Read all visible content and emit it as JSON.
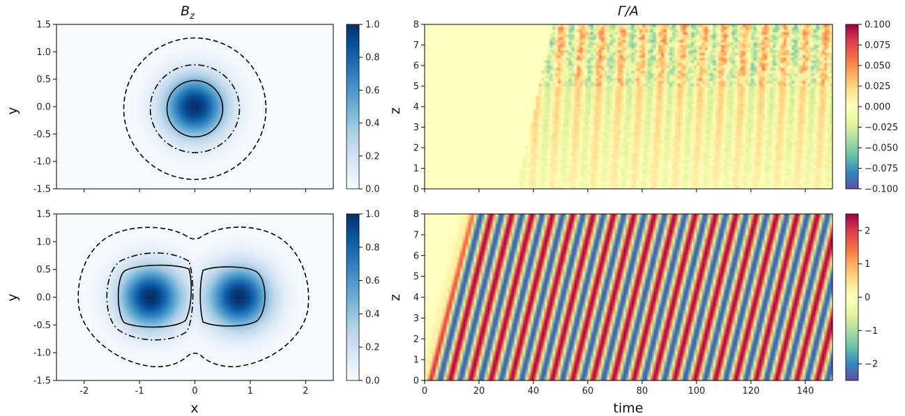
{
  "chart_data": [
    {
      "type": "heatmap",
      "panel": "top-left",
      "title": "B_z",
      "xlabel": "",
      "ylabel": "y",
      "xlim": [
        -2.5,
        2.5
      ],
      "ylim": [
        -1.5,
        1.5
      ],
      "xticks": [],
      "yticks": [
        "1.5",
        "1.0",
        "0.5",
        "0.0",
        "-0.5",
        "-1.0",
        "-1.5"
      ],
      "colormap": "Blues",
      "colorbar": {
        "min": 0.0,
        "max": 1.0,
        "ticks": [
          "1.0",
          "0.8",
          "0.6",
          "0.4",
          "0.2",
          "0.0"
        ]
      },
      "field": {
        "centers": [
          [
            0,
            0
          ]
        ],
        "width": 0.55
      },
      "contours": [
        {
          "style": "solid",
          "level": "r=0.5"
        },
        {
          "style": "dashdot",
          "level": "r=0.78"
        },
        {
          "style": "dashed",
          "level": "r=1.25"
        }
      ]
    },
    {
      "type": "heatmap",
      "panel": "bottom-left",
      "title": "",
      "xlabel": "x",
      "ylabel": "y",
      "xlim": [
        -2.5,
        2.5
      ],
      "ylim": [
        -1.5,
        1.5
      ],
      "xticks": [
        "-2",
        "-1",
        "0",
        "1",
        "2"
      ],
      "yticks": [
        "1.5",
        "1.0",
        "0.5",
        "0.0",
        "-0.5",
        "-1.0",
        "-1.5"
      ],
      "colormap": "Blues",
      "colorbar": {
        "min": 0.0,
        "max": 1.0,
        "ticks": [
          "1.0",
          "0.8",
          "0.6",
          "0.4",
          "0.2",
          "0.0"
        ]
      },
      "field": {
        "centers": [
          [
            -0.8,
            0
          ],
          [
            0.8,
            0
          ]
        ],
        "width": 0.55
      },
      "contours": [
        {
          "style": "solid",
          "level": "two lobes, |x|≈0.15–1.3"
        },
        {
          "style": "dashdot",
          "level": "left lobe"
        },
        {
          "style": "dashed",
          "level": "outer envelope"
        }
      ]
    },
    {
      "type": "heatmap",
      "panel": "top-right",
      "title": "Γ/A",
      "xlabel": "",
      "ylabel": "z",
      "xlim": [
        0,
        150
      ],
      "ylim": [
        0,
        8
      ],
      "xticks": [],
      "yticks": [
        "8",
        "7",
        "6",
        "5",
        "4",
        "3",
        "2",
        "1",
        "0"
      ],
      "colormap": "Spectral_r",
      "colorbar": {
        "min": -0.1,
        "max": 0.1,
        "ticks": [
          "0.100",
          "0.075",
          "0.050",
          "0.025",
          "0.000",
          "−0.025",
          "−0.050",
          "−0.075",
          "−0.100"
        ]
      },
      "pattern": {
        "onset_time": 35,
        "period": 7.5,
        "amplitude": 0.04,
        "description": "near-zero until t≈35, then weak drifting stripes, strongest at high z"
      }
    },
    {
      "type": "heatmap",
      "panel": "bottom-right",
      "title": "",
      "xlabel": "time",
      "ylabel": "z",
      "xlim": [
        0,
        150
      ],
      "ylim": [
        0,
        8
      ],
      "xticks": [
        "0",
        "20",
        "40",
        "60",
        "80",
        "100",
        "120",
        "140"
      ],
      "yticks": [
        "8",
        "7",
        "6",
        "5",
        "4",
        "3",
        "2",
        "1",
        "0"
      ],
      "colormap": "Spectral_r",
      "colorbar": {
        "min": -2.5,
        "max": 2.5,
        "ticks": [
          "2",
          "1",
          "0",
          "−1",
          "−2"
        ]
      },
      "pattern": {
        "front_speed": 0.5,
        "period": 7.5,
        "amplitude": 2.5,
        "description": "diagonal traveling wave stripes behind a front z = 0.5·t"
      }
    }
  ]
}
